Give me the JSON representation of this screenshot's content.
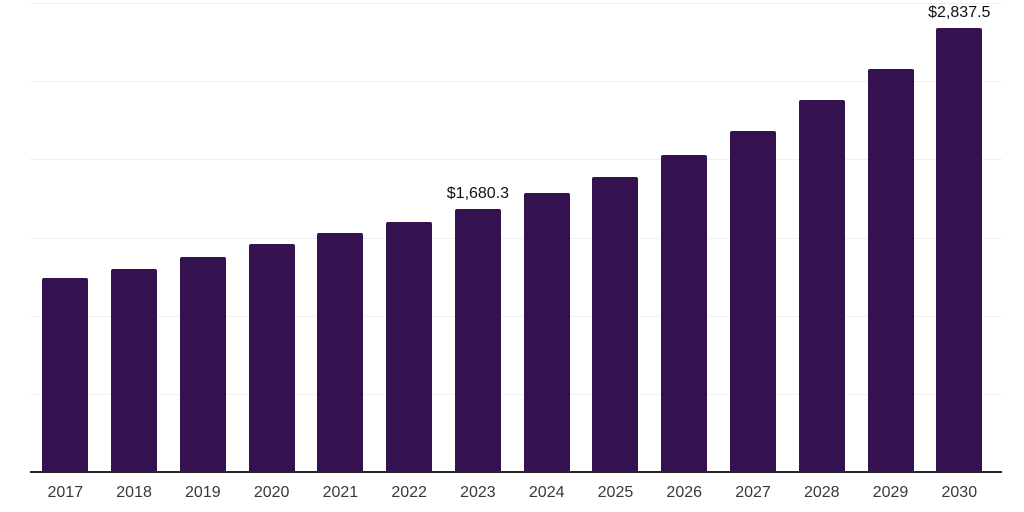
{
  "chart_data": {
    "type": "bar",
    "title": "",
    "xlabel": "",
    "ylabel": "",
    "categories": [
      "2017",
      "2018",
      "2019",
      "2020",
      "2021",
      "2022",
      "2023",
      "2024",
      "2025",
      "2026",
      "2027",
      "2028",
      "2029",
      "2030"
    ],
    "values": [
      1238,
      1296,
      1377,
      1460,
      1526,
      1598,
      1680.3,
      1782,
      1888,
      2025,
      2182,
      2377,
      2581,
      2837.5
    ],
    "bar_labels": [
      "",
      "",
      "",
      "",
      "",
      "",
      "$1,680.3",
      "",
      "",
      "",
      "",
      "",
      "",
      "$2,837.5"
    ],
    "ylim": [
      0,
      3000
    ],
    "gridline_step": 500,
    "grid": true,
    "legend": "none",
    "colors": {
      "bar": "#341250",
      "axis_line": "#262626",
      "gridline": "#f0f0f2",
      "tick_label": "#383838",
      "data_label": "#111111",
      "background": "#ffffff"
    }
  }
}
